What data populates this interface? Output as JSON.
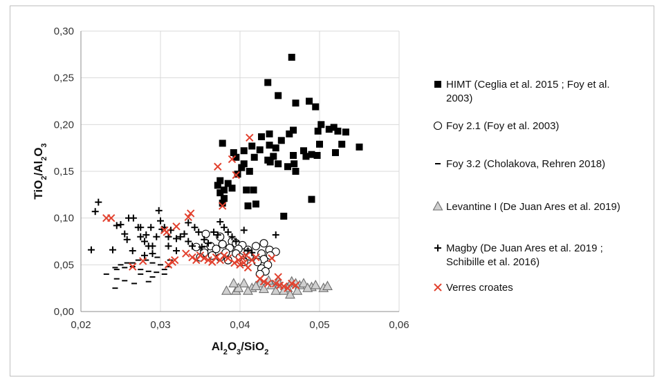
{
  "chart_data": {
    "type": "scatter",
    "xlabel_parts": [
      [
        "Al",
        "n"
      ],
      [
        "2",
        "sub"
      ],
      [
        "O",
        "n"
      ],
      [
        "3",
        "sub"
      ],
      [
        "/SiO",
        "n"
      ],
      [
        "2",
        "sub"
      ]
    ],
    "ylabel_parts": [
      [
        "TiO",
        "n"
      ],
      [
        "2",
        "sub"
      ],
      [
        "/Al",
        "n"
      ],
      [
        "2",
        "sub"
      ],
      [
        "O",
        "n"
      ],
      [
        "3",
        "sub"
      ]
    ],
    "xlim": [
      0.02,
      0.06
    ],
    "ylim": [
      0.0,
      0.3
    ],
    "xticks": [
      0.02,
      0.03,
      0.04,
      0.05,
      0.06
    ],
    "xtick_labels": [
      "0,02",
      "0,03",
      "0,04",
      "0,05",
      "0,06"
    ],
    "yticks": [
      0.0,
      0.05,
      0.1,
      0.15,
      0.2,
      0.25,
      0.3
    ],
    "ytick_labels": [
      "0,00",
      "0,05",
      "0,10",
      "0,15",
      "0,20",
      "0,25",
      "0,30"
    ],
    "grid": true,
    "legend_position": "right",
    "series": [
      {
        "name_lines": [
          "HIMT (Ceglia et al. 2015 ; Foy et al.",
          "2003)"
        ],
        "marker": "filled-square",
        "color": "#000000",
        "points": [
          [
            0.0465,
            0.272
          ],
          [
            0.0435,
            0.245
          ],
          [
            0.0448,
            0.231
          ],
          [
            0.0487,
            0.225
          ],
          [
            0.047,
            0.223
          ],
          [
            0.0495,
            0.219
          ],
          [
            0.0502,
            0.2
          ],
          [
            0.0512,
            0.195
          ],
          [
            0.0523,
            0.193
          ],
          [
            0.0533,
            0.192
          ],
          [
            0.0518,
            0.197
          ],
          [
            0.0498,
            0.193
          ],
          [
            0.0467,
            0.194
          ],
          [
            0.0462,
            0.19
          ],
          [
            0.0437,
            0.19
          ],
          [
            0.0427,
            0.187
          ],
          [
            0.0452,
            0.183
          ],
          [
            0.055,
            0.176
          ],
          [
            0.0528,
            0.179
          ],
          [
            0.05,
            0.179
          ],
          [
            0.0437,
            0.178
          ],
          [
            0.0415,
            0.177
          ],
          [
            0.0405,
            0.172
          ],
          [
            0.0392,
            0.17
          ],
          [
            0.0378,
            0.18
          ],
          [
            0.0425,
            0.173
          ],
          [
            0.0445,
            0.175
          ],
          [
            0.048,
            0.172
          ],
          [
            0.049,
            0.168
          ],
          [
            0.0483,
            0.166
          ],
          [
            0.0497,
            0.167
          ],
          [
            0.052,
            0.17
          ],
          [
            0.0467,
            0.167
          ],
          [
            0.0442,
            0.166
          ],
          [
            0.0438,
            0.16
          ],
          [
            0.0448,
            0.158
          ],
          [
            0.0435,
            0.162
          ],
          [
            0.0418,
            0.165
          ],
          [
            0.0395,
            0.165
          ],
          [
            0.0405,
            0.158
          ],
          [
            0.0402,
            0.154
          ],
          [
            0.046,
            0.155
          ],
          [
            0.0468,
            0.158
          ],
          [
            0.047,
            0.15
          ],
          [
            0.0412,
            0.15
          ],
          [
            0.0397,
            0.147
          ],
          [
            0.0375,
            0.14
          ],
          [
            0.0385,
            0.137
          ],
          [
            0.0372,
            0.135
          ],
          [
            0.039,
            0.132
          ],
          [
            0.038,
            0.13
          ],
          [
            0.0375,
            0.127
          ],
          [
            0.0408,
            0.13
          ],
          [
            0.0417,
            0.13
          ],
          [
            0.038,
            0.121
          ],
          [
            0.0378,
            0.116
          ],
          [
            0.041,
            0.113
          ],
          [
            0.042,
            0.115
          ],
          [
            0.0455,
            0.102
          ],
          [
            0.049,
            0.12
          ]
        ]
      },
      {
        "name_lines": [
          "Foy 2.1 (Foy et al. 2003)"
        ],
        "marker": "open-circle",
        "color": "#000000",
        "points": [
          [
            0.0357,
            0.083
          ],
          [
            0.0375,
            0.08
          ],
          [
            0.039,
            0.075
          ],
          [
            0.0395,
            0.073
          ],
          [
            0.0403,
            0.071
          ],
          [
            0.0378,
            0.072
          ],
          [
            0.0363,
            0.07
          ],
          [
            0.0345,
            0.069
          ],
          [
            0.0355,
            0.066
          ],
          [
            0.037,
            0.067
          ],
          [
            0.0387,
            0.068
          ],
          [
            0.0398,
            0.067
          ],
          [
            0.041,
            0.066
          ],
          [
            0.042,
            0.07
          ],
          [
            0.043,
            0.073
          ],
          [
            0.0437,
            0.066
          ],
          [
            0.0445,
            0.064
          ],
          [
            0.0355,
            0.063
          ],
          [
            0.0382,
            0.063
          ],
          [
            0.0395,
            0.062
          ],
          [
            0.041,
            0.063
          ],
          [
            0.0427,
            0.062
          ],
          [
            0.0412,
            0.059
          ],
          [
            0.04,
            0.058
          ],
          [
            0.043,
            0.056
          ],
          [
            0.0438,
            0.06
          ],
          [
            0.0375,
            0.058
          ],
          [
            0.0385,
            0.055
          ],
          [
            0.0422,
            0.053
          ],
          [
            0.0435,
            0.05
          ],
          [
            0.0427,
            0.046
          ],
          [
            0.0432,
            0.043
          ],
          [
            0.0425,
            0.04
          ],
          [
            0.035,
            0.058
          ],
          [
            0.0365,
            0.06
          ],
          [
            0.0405,
            0.053
          ]
        ]
      },
      {
        "name_lines": [
          "Foy 3.2 (Cholakova, Rehren 2018)"
        ],
        "marker": "dash",
        "color": "#000000",
        "points": [
          [
            0.0243,
            0.025
          ],
          [
            0.0232,
            0.04
          ],
          [
            0.0245,
            0.035
          ],
          [
            0.0255,
            0.033
          ],
          [
            0.0267,
            0.03
          ],
          [
            0.0285,
            0.032
          ],
          [
            0.029,
            0.037
          ],
          [
            0.0245,
            0.045
          ],
          [
            0.0255,
            0.047
          ],
          [
            0.0265,
            0.048
          ],
          [
            0.0275,
            0.045
          ],
          [
            0.0285,
            0.043
          ],
          [
            0.0295,
            0.042
          ],
          [
            0.0305,
            0.04
          ],
          [
            0.0265,
            0.052
          ],
          [
            0.0272,
            0.055
          ],
          [
            0.0282,
            0.055
          ],
          [
            0.029,
            0.052
          ],
          [
            0.03,
            0.05
          ],
          [
            0.031,
            0.048
          ],
          [
            0.0258,
            0.052
          ],
          [
            0.025,
            0.05
          ],
          [
            0.0243,
            0.047
          ],
          [
            0.0296,
            0.058
          ],
          [
            0.0275,
            0.04
          ],
          [
            0.0305,
            0.045
          ],
          [
            0.0312,
            0.055
          ]
        ]
      },
      {
        "name_lines": [
          "Levantine I (De Juan Ares et al. 2019)"
        ],
        "marker": "open-triangle",
        "color": "#6d6d6d",
        "points": [
          [
            0.0383,
            0.022
          ],
          [
            0.0395,
            0.022
          ],
          [
            0.0405,
            0.03
          ],
          [
            0.0415,
            0.025
          ],
          [
            0.0425,
            0.03
          ],
          [
            0.043,
            0.024
          ],
          [
            0.044,
            0.028
          ],
          [
            0.0445,
            0.022
          ],
          [
            0.045,
            0.029
          ],
          [
            0.046,
            0.025
          ],
          [
            0.0465,
            0.032
          ],
          [
            0.0475,
            0.028
          ],
          [
            0.048,
            0.03
          ],
          [
            0.049,
            0.026
          ],
          [
            0.0505,
            0.025
          ],
          [
            0.051,
            0.027
          ],
          [
            0.0398,
            0.025
          ],
          [
            0.042,
            0.027
          ],
          [
            0.0436,
            0.033
          ],
          [
            0.0455,
            0.022
          ],
          [
            0.0463,
            0.018
          ],
          [
            0.047,
            0.03
          ],
          [
            0.0485,
            0.025
          ],
          [
            0.041,
            0.022
          ],
          [
            0.0392,
            0.03
          ],
          [
            0.0448,
            0.032
          ],
          [
            0.0472,
            0.022
          ],
          [
            0.0495,
            0.028
          ]
        ]
      },
      {
        "name_lines": [
          "Magby (De Juan Ares et al. 2019 ;",
          "Schibille et al. 2016)"
        ],
        "marker": "plus",
        "color": "#000000",
        "points": [
          [
            0.0222,
            0.117
          ],
          [
            0.0218,
            0.107
          ],
          [
            0.0213,
            0.066
          ],
          [
            0.024,
            0.066
          ],
          [
            0.0245,
            0.092
          ],
          [
            0.025,
            0.093
          ],
          [
            0.0255,
            0.083
          ],
          [
            0.0258,
            0.077
          ],
          [
            0.026,
            0.1
          ],
          [
            0.0266,
            0.1
          ],
          [
            0.0272,
            0.09
          ],
          [
            0.0275,
            0.08
          ],
          [
            0.028,
            0.075
          ],
          [
            0.0282,
            0.082
          ],
          [
            0.0285,
            0.07
          ],
          [
            0.0288,
            0.09
          ],
          [
            0.029,
            0.07
          ],
          [
            0.0295,
            0.08
          ],
          [
            0.0298,
            0.108
          ],
          [
            0.03,
            0.097
          ],
          [
            0.0302,
            0.088
          ],
          [
            0.0305,
            0.09
          ],
          [
            0.031,
            0.08
          ],
          [
            0.0313,
            0.087
          ],
          [
            0.032,
            0.078
          ],
          [
            0.0325,
            0.08
          ],
          [
            0.033,
            0.083
          ],
          [
            0.0335,
            0.075
          ],
          [
            0.034,
            0.07
          ],
          [
            0.0343,
            0.09
          ],
          [
            0.0348,
            0.085
          ],
          [
            0.0355,
            0.077
          ],
          [
            0.036,
            0.073
          ],
          [
            0.0367,
            0.085
          ],
          [
            0.0372,
            0.082
          ],
          [
            0.0375,
            0.096
          ],
          [
            0.038,
            0.09
          ],
          [
            0.0385,
            0.085
          ],
          [
            0.039,
            0.08
          ],
          [
            0.0395,
            0.075
          ],
          [
            0.0405,
            0.087
          ],
          [
            0.041,
            0.065
          ],
          [
            0.0415,
            0.063
          ],
          [
            0.0445,
            0.082
          ],
          [
            0.0265,
            0.065
          ],
          [
            0.028,
            0.06
          ],
          [
            0.031,
            0.07
          ],
          [
            0.032,
            0.065
          ],
          [
            0.0275,
            0.09
          ],
          [
            0.0335,
            0.095
          ],
          [
            0.0352,
            0.069
          ],
          [
            0.029,
            0.062
          ]
        ]
      },
      {
        "name_lines": [
          "Verres croates"
        ],
        "marker": "x",
        "color": "#e2412e",
        "points": [
          [
            0.0232,
            0.1
          ],
          [
            0.0238,
            0.1
          ],
          [
            0.0265,
            0.048
          ],
          [
            0.0278,
            0.054
          ],
          [
            0.0305,
            0.087
          ],
          [
            0.0308,
            0.085
          ],
          [
            0.031,
            0.05
          ],
          [
            0.0315,
            0.053
          ],
          [
            0.0318,
            0.055
          ],
          [
            0.032,
            0.091
          ],
          [
            0.0335,
            0.101
          ],
          [
            0.0338,
            0.105
          ],
          [
            0.0332,
            0.062
          ],
          [
            0.034,
            0.058
          ],
          [
            0.0345,
            0.055
          ],
          [
            0.035,
            0.06
          ],
          [
            0.0355,
            0.057
          ],
          [
            0.036,
            0.055
          ],
          [
            0.0365,
            0.053
          ],
          [
            0.037,
            0.058
          ],
          [
            0.0372,
            0.155
          ],
          [
            0.0375,
            0.055
          ],
          [
            0.0378,
            0.113
          ],
          [
            0.038,
            0.06
          ],
          [
            0.0385,
            0.057
          ],
          [
            0.039,
            0.163
          ],
          [
            0.0395,
            0.146
          ],
          [
            0.0398,
            0.055
          ],
          [
            0.04,
            0.05
          ],
          [
            0.0402,
            0.058
          ],
          [
            0.0405,
            0.052
          ],
          [
            0.0408,
            0.06
          ],
          [
            0.0412,
            0.186
          ],
          [
            0.0415,
            0.055
          ],
          [
            0.042,
            0.058
          ],
          [
            0.0425,
            0.035
          ],
          [
            0.043,
            0.032
          ],
          [
            0.0435,
            0.03
          ],
          [
            0.044,
            0.057
          ],
          [
            0.0445,
            0.03
          ],
          [
            0.0448,
            0.037
          ],
          [
            0.045,
            0.028
          ],
          [
            0.0455,
            0.027
          ],
          [
            0.046,
            0.025
          ],
          [
            0.0465,
            0.03
          ],
          [
            0.047,
            0.028
          ],
          [
            0.0393,
            0.052
          ],
          [
            0.041,
            0.047
          ]
        ]
      }
    ]
  }
}
